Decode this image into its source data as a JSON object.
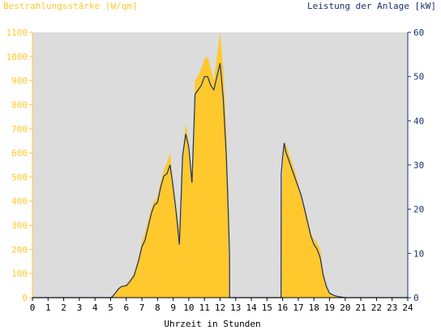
{
  "chart_data": {
    "type": "area",
    "y_left_label": "Bestrahlungsstärke [W/qm]",
    "y_right_label": "Leistung der Anlage [kW]",
    "xlabel": "Uhrzeit in Stunden",
    "xlim": [
      0,
      24
    ],
    "x_ticks": [
      "0",
      "1",
      "2",
      "3",
      "4",
      "5",
      "6",
      "7",
      "8",
      "9",
      "10",
      "11",
      "12",
      "13",
      "14",
      "15",
      "16",
      "17",
      "18",
      "19",
      "20",
      "21",
      "22",
      "23",
      "24"
    ],
    "ylim_left": [
      0,
      1100
    ],
    "y_left_ticks": [
      "0",
      "100",
      "200",
      "300",
      "400",
      "500",
      "600",
      "700",
      "800",
      "900",
      "1000",
      "1100"
    ],
    "ylim_right": [
      0,
      60
    ],
    "y_right_ticks": [
      "0",
      "10",
      "20",
      "30",
      "40",
      "50",
      "60"
    ],
    "grid": false,
    "colors": {
      "irradiance": "#ffc82d",
      "power": "#1a3170",
      "plot_bg": "#dcdcdc",
      "left_axis": "#ffc82d",
      "right_axis": "#1a3170"
    },
    "series": [
      {
        "name": "Bestrahlungsstärke [W/qm]",
        "axis": "left",
        "x": [
          0,
          5,
          5.1,
          5.3,
          5.5,
          5.7,
          6,
          6.2,
          6.5,
          6.8,
          7,
          7.2,
          7.4,
          7.6,
          7.8,
          8,
          8.2,
          8.4,
          8.6,
          8.8,
          9,
          9.2,
          9.4,
          9.6,
          9.8,
          10,
          10.2,
          10.4,
          10.6,
          10.8,
          11,
          11.2,
          11.4,
          11.6,
          11.8,
          12,
          12.2,
          12.4,
          12.5,
          12.6,
          12.61,
          15.9,
          15.91,
          16,
          16.1,
          16.2,
          16.4,
          16.6,
          16.8,
          17,
          17.2,
          17.4,
          17.6,
          17.8,
          18,
          18.2,
          18.4,
          18.6,
          18.8,
          19,
          19.3,
          19.6,
          20,
          20.2,
          21,
          24
        ],
        "y": [
          0,
          0,
          5,
          20,
          40,
          50,
          55,
          70,
          100,
          170,
          230,
          270,
          320,
          370,
          400,
          420,
          480,
          530,
          560,
          600,
          480,
          380,
          280,
          600,
          720,
          650,
          500,
          900,
          920,
          950,
          990,
          1000,
          950,
          900,
          1000,
          1100,
          950,
          700,
          500,
          300,
          0,
          0,
          300,
          540,
          640,
          640,
          600,
          560,
          520,
          470,
          430,
          380,
          330,
          270,
          240,
          230,
          200,
          110,
          50,
          20,
          10,
          5,
          2,
          0,
          0,
          0
        ]
      },
      {
        "name": "Leistung der Anlage [kW]",
        "axis": "right",
        "x": [
          0,
          5,
          5.1,
          5.3,
          5.5,
          5.7,
          6,
          6.2,
          6.5,
          6.8,
          7,
          7.2,
          7.4,
          7.6,
          7.8,
          8,
          8.2,
          8.4,
          8.6,
          8.8,
          9,
          9.2,
          9.4,
          9.6,
          9.8,
          10,
          10.2,
          10.4,
          10.6,
          10.8,
          11,
          11.2,
          11.4,
          11.6,
          11.8,
          12,
          12.2,
          12.4,
          12.5,
          12.6,
          12.61,
          15.9,
          15.91,
          16,
          16.1,
          16.2,
          16.4,
          16.6,
          16.8,
          17,
          17.2,
          17.4,
          17.6,
          17.8,
          18,
          18.2,
          18.4,
          18.6,
          18.8,
          19,
          19.3,
          19.6,
          20,
          20.2,
          21,
          24
        ],
        "y": [
          0,
          0,
          0.2,
          1,
          2,
          2.5,
          2.7,
          3.5,
          5,
          8.5,
          11.5,
          13,
          16,
          19,
          21,
          21.5,
          25,
          27.5,
          28,
          30,
          25,
          19,
          12,
          32,
          37,
          34,
          26,
          46,
          47,
          48,
          50,
          50,
          48,
          47,
          50,
          53,
          45,
          32,
          22,
          10,
          0,
          0,
          28,
          32,
          35,
          33,
          31,
          29,
          27,
          25,
          23,
          20,
          17,
          14,
          12,
          11,
          9,
          5,
          2.5,
          1,
          0.5,
          0.2,
          0,
          0,
          0,
          0
        ]
      }
    ]
  }
}
